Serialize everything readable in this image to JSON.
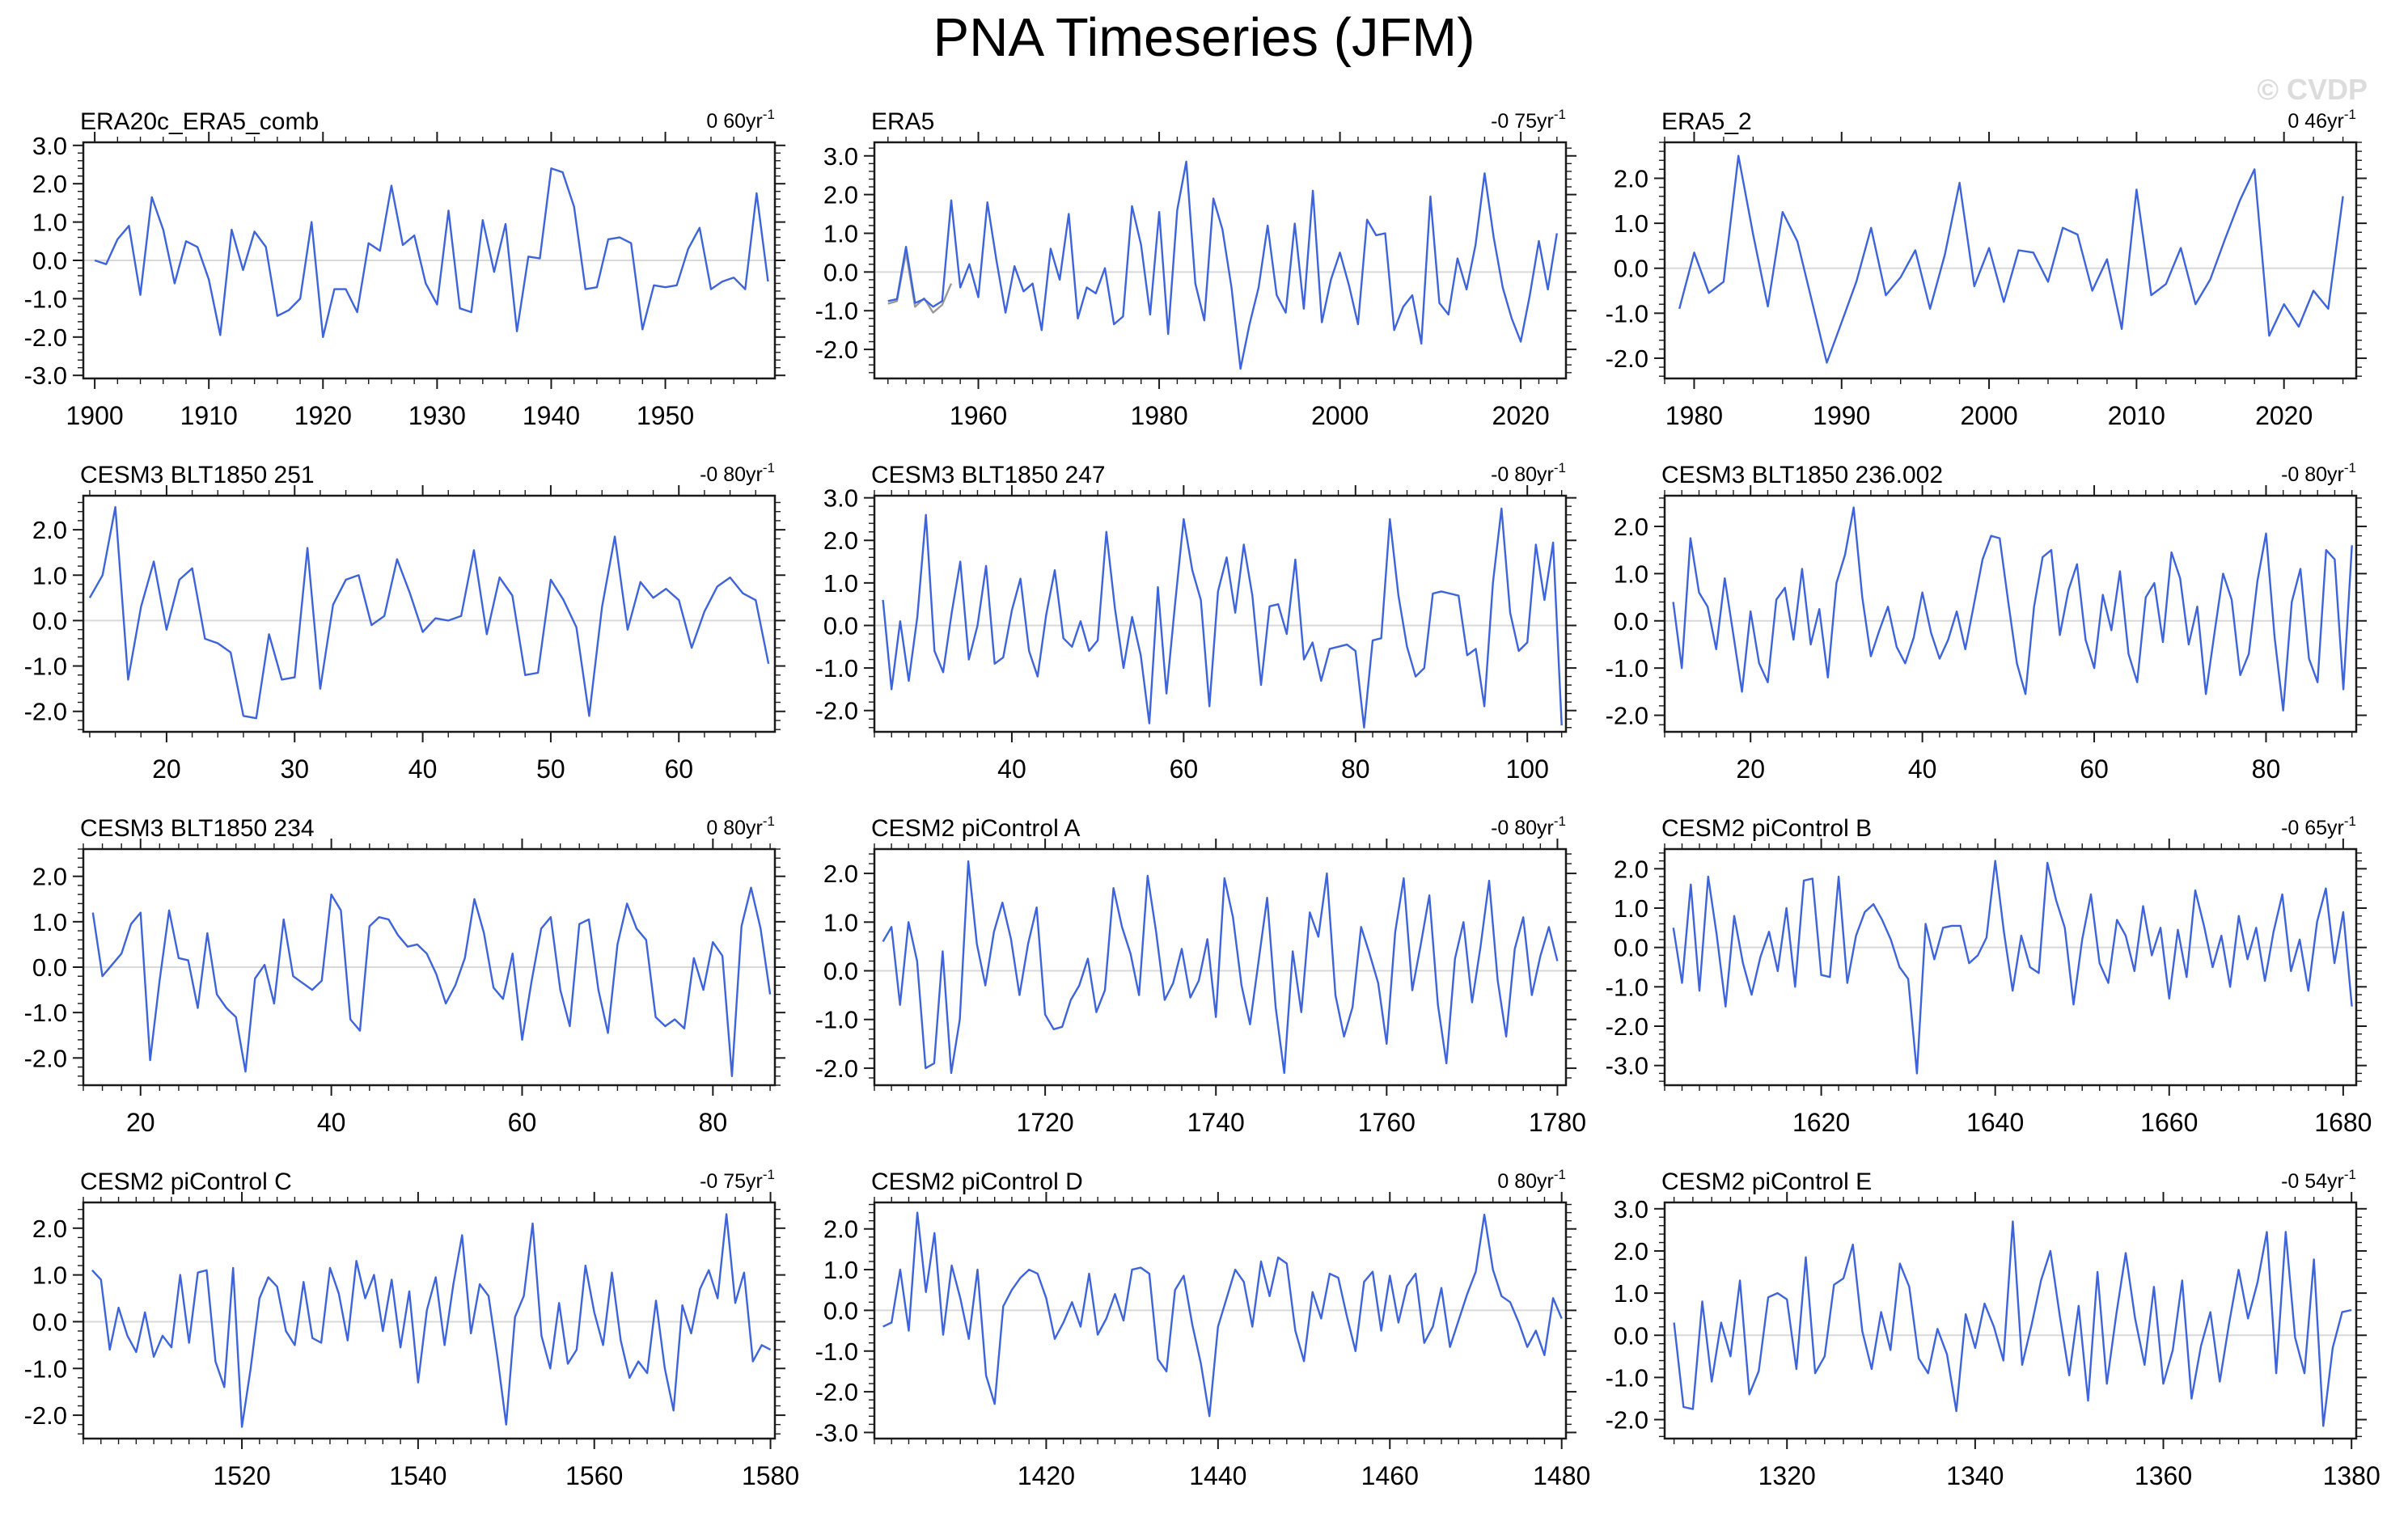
{
  "page": {
    "title": "PNA Timeseries (JFM)",
    "watermark": "© CVDP"
  },
  "style": {
    "line_color": "#3D64DC",
    "secondary_line_color": "#999999",
    "zero_line_color": "#D9D9D9",
    "frame_color": "#1a1a1a",
    "tick_color": "#1a1a1a",
    "label_color": "#000000"
  },
  "chart_data": [
    {
      "type": "line",
      "title": "ERA20c_ERA5_comb",
      "trend_label": "0 60yr",
      "trend_sup": "-1",
      "x_start": 1900,
      "x_step": 1,
      "xlim": [
        1899,
        1959.6
      ],
      "x_major_ticks": [
        1900,
        1910,
        1920,
        1930,
        1940,
        1950
      ],
      "x_minor_step": 2,
      "ylim": [
        -3.08,
        3.08
      ],
      "y_major_ticks": [
        3,
        2,
        1,
        0,
        -1,
        -2,
        -3
      ],
      "y_minor_step": 0.2,
      "values": [
        0.0,
        -0.1,
        0.55,
        0.9,
        -0.9,
        1.65,
        0.8,
        -0.6,
        0.5,
        0.35,
        -0.5,
        -1.95,
        0.8,
        -0.25,
        0.75,
        0.35,
        -1.45,
        -1.3,
        -1.0,
        1.0,
        -2.0,
        -0.75,
        -0.75,
        -1.35,
        0.45,
        0.25,
        1.95,
        0.4,
        0.65,
        -0.6,
        -1.15,
        1.3,
        -1.25,
        -1.35,
        1.05,
        -0.3,
        0.95,
        -1.85,
        0.1,
        0.05,
        2.4,
        2.3,
        1.4,
        -0.75,
        -0.7,
        0.55,
        0.6,
        0.45,
        -1.8,
        -0.65,
        -0.7,
        -0.65,
        0.3,
        0.85,
        -0.75,
        -0.55,
        -0.45,
        -0.75,
        1.75,
        -0.55
      ]
    },
    {
      "type": "line",
      "title": "ERA5",
      "trend_label": "-0 75yr",
      "trend_sup": "-1",
      "x_start": 1950,
      "x_step": 1,
      "xlim": [
        1948.5,
        2025
      ],
      "x_major_ticks": [
        1960,
        1980,
        2000,
        2020
      ],
      "x_minor_step": 2,
      "ylim": [
        -2.75,
        3.35
      ],
      "y_major_ticks": [
        3,
        2,
        1,
        0,
        -1,
        -2
      ],
      "y_minor_step": 0.2,
      "values": [
        -0.75,
        -0.7,
        0.65,
        -0.8,
        -0.7,
        -0.9,
        -0.75,
        1.85,
        -0.4,
        0.2,
        -0.65,
        1.8,
        0.3,
        -1.05,
        0.15,
        -0.5,
        -0.3,
        -1.5,
        0.6,
        -0.2,
        1.5,
        -1.2,
        -0.4,
        -0.55,
        0.1,
        -1.35,
        -1.15,
        1.7,
        0.7,
        -1.1,
        1.55,
        -1.6,
        1.6,
        2.85,
        -0.3,
        -1.25,
        1.9,
        1.1,
        -0.4,
        -2.5,
        -1.35,
        -0.4,
        1.2,
        -0.6,
        -1.05,
        1.25,
        -0.95,
        2.1,
        -1.3,
        -0.2,
        0.5,
        -0.35,
        -1.35,
        1.35,
        0.95,
        1.0,
        -1.5,
        -0.9,
        -0.6,
        -1.85,
        1.95,
        -0.8,
        -1.1,
        0.35,
        -0.45,
        0.7,
        2.55,
        0.9,
        -0.4,
        -1.2,
        -1.8,
        -0.6,
        0.8,
        -0.45,
        1.0
      ],
      "secondary": {
        "x_start": 1950,
        "values": [
          -0.82,
          -0.75,
          0.5,
          -0.9,
          -0.68,
          -1.05,
          -0.85,
          -0.3
        ]
      }
    },
    {
      "type": "line",
      "title": "ERA5_2",
      "trend_label": "0 46yr",
      "trend_sup": "-1",
      "x_start": 1979,
      "x_step": 1,
      "xlim": [
        1978,
        2024.9
      ],
      "x_major_ticks": [
        1980,
        1990,
        2000,
        2010,
        2020
      ],
      "x_minor_step": 2,
      "ylim": [
        -2.45,
        2.8
      ],
      "y_major_ticks": [
        2,
        1,
        0,
        -1,
        -2
      ],
      "y_minor_step": 0.2,
      "values": [
        -0.9,
        0.35,
        -0.55,
        -0.3,
        2.5,
        0.75,
        -0.85,
        1.25,
        0.6,
        -0.75,
        -2.1,
        -1.2,
        -0.3,
        0.9,
        -0.6,
        -0.2,
        0.4,
        -0.9,
        0.3,
        1.9,
        -0.4,
        0.45,
        -0.75,
        0.4,
        0.35,
        -0.3,
        0.9,
        0.75,
        -0.5,
        0.2,
        -1.35,
        1.75,
        -0.6,
        -0.35,
        0.45,
        -0.8,
        -0.25,
        0.65,
        1.5,
        2.2,
        -1.5,
        -0.8,
        -1.3,
        -0.5,
        -0.9,
        1.6
      ]
    },
    {
      "type": "line",
      "title": "CESM3 BLT1850 251",
      "trend_label": "-0 80yr",
      "trend_sup": "-1",
      "x_start": 14,
      "x_step": 1,
      "xlim": [
        13.5,
        67.5
      ],
      "x_major_ticks": [
        20,
        30,
        40,
        50,
        60
      ],
      "x_minor_step": 2,
      "ylim": [
        -2.45,
        2.75
      ],
      "y_major_ticks": [
        2,
        1,
        0,
        -1,
        -2
      ],
      "y_minor_step": 0.2,
      "values": [
        0.5,
        1.0,
        2.5,
        -1.3,
        0.3,
        1.3,
        -0.2,
        0.9,
        1.15,
        -0.4,
        -0.5,
        -0.7,
        -2.1,
        -2.15,
        -0.3,
        -1.3,
        -1.25,
        1.6,
        -1.5,
        0.35,
        0.9,
        1.0,
        -0.1,
        0.1,
        1.35,
        0.6,
        -0.25,
        0.05,
        0.0,
        0.1,
        1.55,
        -0.3,
        0.95,
        0.55,
        -1.2,
        -1.15,
        0.9,
        0.45,
        -0.15,
        -2.1,
        0.3,
        1.85,
        -0.2,
        0.85,
        0.5,
        0.7,
        0.45,
        -0.6,
        0.2,
        0.75,
        0.95,
        0.6,
        0.45,
        -0.95
      ]
    },
    {
      "type": "line",
      "title": "CESM3 BLT1850 247",
      "trend_label": "-0 80yr",
      "trend_sup": "-1",
      "x_start": 25,
      "x_step": 1,
      "xlim": [
        24,
        104.5
      ],
      "x_major_ticks": [
        40,
        60,
        80,
        100
      ],
      "x_minor_step": 2,
      "ylim": [
        -2.5,
        3.05
      ],
      "y_major_ticks": [
        3,
        2,
        1,
        0,
        -1,
        -2
      ],
      "y_minor_step": 0.2,
      "values": [
        0.6,
        -1.5,
        0.1,
        -1.3,
        0.2,
        2.6,
        -0.6,
        -1.1,
        0.3,
        1.5,
        -0.8,
        0.0,
        1.4,
        -0.9,
        -0.75,
        0.35,
        1.1,
        -0.6,
        -1.2,
        0.25,
        1.3,
        -0.3,
        -0.5,
        0.1,
        -0.6,
        -0.35,
        2.2,
        0.4,
        -1.0,
        0.2,
        -0.7,
        -2.3,
        0.9,
        -1.6,
        0.5,
        2.5,
        1.3,
        0.6,
        -1.9,
        0.8,
        1.6,
        0.3,
        1.9,
        0.7,
        -1.4,
        0.45,
        0.5,
        -0.2,
        1.55,
        -0.8,
        -0.4,
        -1.3,
        -0.55,
        -0.5,
        -0.45,
        -0.6,
        -2.4,
        -0.35,
        -0.3,
        2.5,
        0.7,
        -0.5,
        -1.2,
        -1.0,
        0.75,
        0.8,
        0.75,
        0.7,
        -0.7,
        -0.55,
        -1.9,
        1.0,
        2.75,
        0.3,
        -0.6,
        -0.4,
        1.9,
        0.6,
        1.95,
        -2.35
      ]
    },
    {
      "type": "line",
      "title": "CESM3 BLT1850 236.002",
      "trend_label": "-0 80yr",
      "trend_sup": "-1",
      "x_start": 11,
      "x_step": 1,
      "xlim": [
        10,
        90.5
      ],
      "x_major_ticks": [
        20,
        40,
        60,
        80
      ],
      "x_minor_step": 2,
      "ylim": [
        -2.35,
        2.65
      ],
      "y_major_ticks": [
        2,
        1,
        0,
        -1,
        -2
      ],
      "y_minor_step": 0.2,
      "values": [
        0.4,
        -1.0,
        1.75,
        0.6,
        0.3,
        -0.6,
        0.9,
        -0.3,
        -1.5,
        0.2,
        -0.9,
        -1.3,
        0.45,
        0.7,
        -0.4,
        1.1,
        -0.5,
        0.25,
        -1.2,
        0.8,
        1.4,
        2.4,
        0.5,
        -0.75,
        -0.2,
        0.3,
        -0.55,
        -0.9,
        -0.35,
        0.6,
        -0.25,
        -0.8,
        -0.4,
        0.2,
        -0.6,
        0.35,
        1.3,
        1.8,
        1.75,
        0.4,
        -0.9,
        -1.55,
        0.3,
        1.35,
        1.5,
        -0.3,
        0.65,
        1.2,
        -0.4,
        -1.0,
        0.55,
        -0.2,
        1.05,
        -0.7,
        -1.3,
        0.5,
        0.8,
        -0.45,
        1.45,
        0.9,
        -0.5,
        0.3,
        -1.55,
        -0.25,
        1.0,
        0.45,
        -1.15,
        -0.7,
        0.85,
        1.85,
        -0.35,
        -1.9,
        0.4,
        1.1,
        -0.8,
        -1.3,
        1.5,
        1.3,
        -1.45,
        1.6
      ]
    },
    {
      "type": "line",
      "title": "CESM3 BLT1850 234",
      "trend_label": "0 80yr",
      "trend_sup": "-1",
      "x_start": 15,
      "x_step": 1,
      "xlim": [
        14,
        86.5
      ],
      "x_major_ticks": [
        20,
        40,
        60,
        80
      ],
      "x_minor_step": 2,
      "ylim": [
        -2.6,
        2.6
      ],
      "y_major_ticks": [
        2,
        1,
        0,
        -1,
        -2
      ],
      "y_minor_step": 0.2,
      "values": [
        1.2,
        -0.2,
        0.05,
        0.3,
        0.95,
        1.2,
        -2.05,
        -0.3,
        1.25,
        0.2,
        0.15,
        -0.9,
        0.75,
        -0.6,
        -0.9,
        -1.1,
        -2.3,
        -0.25,
        0.05,
        -0.8,
        1.05,
        -0.2,
        -0.35,
        -0.5,
        -0.3,
        1.6,
        1.25,
        -1.15,
        -1.4,
        0.9,
        1.1,
        1.05,
        0.7,
        0.45,
        0.5,
        0.3,
        -0.15,
        -0.8,
        -0.4,
        0.2,
        1.5,
        0.75,
        -0.45,
        -0.7,
        0.3,
        -1.6,
        -0.3,
        0.85,
        1.1,
        -0.5,
        -1.3,
        0.95,
        1.05,
        -0.5,
        -1.45,
        0.5,
        1.4,
        0.85,
        0.6,
        -1.1,
        -1.3,
        -1.15,
        -1.35,
        0.2,
        -0.5,
        0.55,
        0.25,
        -2.4,
        0.9,
        1.75,
        0.85,
        -0.6
      ]
    },
    {
      "type": "line",
      "title": "CESM2 piControl A",
      "trend_label": "-0 80yr",
      "trend_sup": "-1",
      "x_start": 1701,
      "x_step": 1,
      "xlim": [
        1700,
        1781
      ],
      "x_major_ticks": [
        1720,
        1740,
        1760,
        1780
      ],
      "x_minor_step": 2,
      "ylim": [
        -2.35,
        2.5
      ],
      "y_major_ticks": [
        2,
        1,
        0,
        -1,
        -2
      ],
      "y_minor_step": 0.2,
      "values": [
        0.6,
        0.9,
        -0.7,
        1.0,
        0.2,
        -2.0,
        -1.9,
        0.4,
        -2.1,
        -1.0,
        2.25,
        0.55,
        -0.3,
        0.8,
        1.4,
        0.65,
        -0.5,
        0.55,
        1.3,
        -0.9,
        -1.2,
        -1.15,
        -0.6,
        -0.3,
        0.25,
        -0.85,
        -0.4,
        1.7,
        0.9,
        0.35,
        -0.5,
        1.95,
        0.8,
        -0.6,
        -0.25,
        0.45,
        -0.55,
        -0.2,
        0.65,
        -0.95,
        1.9,
        1.1,
        -0.3,
        -1.1,
        0.2,
        1.5,
        -0.75,
        -2.1,
        0.4,
        -0.85,
        1.2,
        0.7,
        2.0,
        -0.5,
        -1.35,
        -0.75,
        0.9,
        0.35,
        -0.25,
        -1.5,
        0.8,
        1.9,
        -0.4,
        0.55,
        1.55,
        -0.7,
        -1.9,
        0.25,
        1.0,
        -0.65,
        0.5,
        1.85,
        -0.2,
        -1.35,
        0.45,
        1.1,
        -0.5,
        0.3,
        0.9,
        0.2
      ]
    },
    {
      "type": "line",
      "title": "CESM2 piControl B",
      "trend_label": "-0 65yr",
      "trend_sup": "-1",
      "x_start": 1603,
      "x_step": 1,
      "xlim": [
        1602,
        1681.5
      ],
      "x_major_ticks": [
        1620,
        1640,
        1660,
        1680
      ],
      "x_minor_step": 2,
      "ylim": [
        -3.5,
        2.5
      ],
      "y_major_ticks": [
        2,
        1,
        0,
        -1,
        -2,
        -3
      ],
      "y_minor_step": 0.2,
      "values": [
        0.5,
        -0.9,
        1.6,
        -1.1,
        1.8,
        0.3,
        -1.5,
        0.8,
        -0.4,
        -1.2,
        -0.25,
        0.4,
        -0.6,
        1.0,
        -1.0,
        1.7,
        1.75,
        -0.7,
        -0.75,
        1.8,
        -0.9,
        0.3,
        0.9,
        1.1,
        0.7,
        0.2,
        -0.5,
        -0.8,
        -3.2,
        0.6,
        -0.3,
        0.5,
        0.55,
        0.55,
        -0.4,
        -0.2,
        0.25,
        2.2,
        0.4,
        -1.1,
        0.3,
        -0.5,
        -0.65,
        2.15,
        1.2,
        0.5,
        -1.45,
        0.2,
        1.35,
        -0.4,
        -0.9,
        0.7,
        0.3,
        -0.6,
        1.05,
        -0.2,
        0.5,
        -1.3,
        0.45,
        -0.75,
        1.45,
        0.55,
        -0.5,
        0.3,
        -1.0,
        0.8,
        -0.3,
        0.5,
        -0.85,
        0.4,
        1.35,
        -0.6,
        0.2,
        -1.1,
        0.65,
        1.5,
        -0.4,
        0.9,
        -1.5
      ]
    },
    {
      "type": "line",
      "title": "CESM2 piControl C",
      "trend_label": "-0 75yr",
      "trend_sup": "-1",
      "x_start": 1503,
      "x_step": 1,
      "xlim": [
        1502,
        1580.5
      ],
      "x_major_ticks": [
        1520,
        1540,
        1560,
        1580
      ],
      "x_minor_step": 2,
      "ylim": [
        -2.5,
        2.55
      ],
      "y_major_ticks": [
        2,
        1,
        0,
        -1,
        -2
      ],
      "y_minor_step": 0.2,
      "values": [
        1.1,
        0.9,
        -0.6,
        0.3,
        -0.3,
        -0.65,
        0.2,
        -0.75,
        -0.3,
        -0.55,
        1.0,
        -0.45,
        1.05,
        1.1,
        -0.85,
        -1.4,
        1.15,
        -2.25,
        -1.0,
        0.5,
        0.95,
        0.75,
        -0.2,
        -0.5,
        0.85,
        -0.35,
        -0.45,
        1.15,
        0.6,
        -0.4,
        1.3,
        0.5,
        1.0,
        -0.2,
        0.9,
        -0.55,
        0.65,
        -1.3,
        0.25,
        0.95,
        -0.5,
        0.8,
        1.85,
        -0.25,
        0.8,
        0.55,
        -0.75,
        -2.2,
        0.1,
        0.55,
        2.1,
        -0.3,
        -1.0,
        0.4,
        -0.9,
        -0.6,
        1.2,
        0.2,
        -0.5,
        1.05,
        -0.4,
        -1.2,
        -0.85,
        -1.1,
        0.45,
        -1.0,
        -1.9,
        0.35,
        -0.25,
        0.7,
        1.1,
        0.5,
        2.3,
        0.4,
        1.05,
        -0.85,
        -0.5,
        -0.6
      ]
    },
    {
      "type": "line",
      "title": "CESM2 piControl D",
      "trend_label": "0 80yr",
      "trend_sup": "-1",
      "x_start": 1401,
      "x_step": 1,
      "xlim": [
        1400,
        1480.5
      ],
      "x_major_ticks": [
        1420,
        1440,
        1460,
        1480
      ],
      "x_minor_step": 2,
      "ylim": [
        -3.15,
        2.65
      ],
      "y_major_ticks": [
        2,
        1,
        0,
        -1,
        -2,
        -3
      ],
      "y_minor_step": 0.2,
      "values": [
        -0.4,
        -0.3,
        1.0,
        -0.5,
        2.4,
        0.45,
        1.9,
        -0.6,
        1.1,
        0.3,
        -0.7,
        1.0,
        -1.6,
        -2.3,
        0.1,
        0.5,
        0.8,
        1.0,
        0.9,
        0.3,
        -0.7,
        -0.3,
        0.2,
        -0.4,
        0.9,
        -0.6,
        -0.2,
        0.4,
        -0.25,
        1.0,
        1.05,
        0.9,
        -1.2,
        -1.5,
        0.5,
        0.85,
        -0.35,
        -1.3,
        -2.6,
        -0.4,
        0.3,
        1.0,
        0.7,
        -0.4,
        1.2,
        0.35,
        1.3,
        1.15,
        -0.5,
        -1.25,
        0.45,
        -0.2,
        0.9,
        0.8,
        -0.15,
        -1.0,
        0.7,
        0.95,
        -0.5,
        0.85,
        -0.3,
        0.6,
        0.9,
        -0.8,
        -0.4,
        0.55,
        -0.9,
        -0.25,
        0.4,
        0.95,
        2.35,
        1.0,
        0.35,
        0.2,
        -0.3,
        -0.9,
        -0.5,
        -1.1,
        0.3,
        -0.2
      ]
    },
    {
      "type": "line",
      "title": "CESM2 piControl E",
      "trend_label": "-0 54yr",
      "trend_sup": "-1",
      "x_start": 1308,
      "x_step": 1,
      "xlim": [
        1307,
        1380.5
      ],
      "x_major_ticks": [
        1320,
        1340,
        1360,
        1380
      ],
      "x_minor_step": 2,
      "ylim": [
        -2.45,
        3.15
      ],
      "y_major_ticks": [
        3,
        2,
        1,
        0,
        -1,
        -2
      ],
      "y_minor_step": 0.2,
      "values": [
        0.3,
        -1.7,
        -1.75,
        0.8,
        -1.1,
        0.3,
        -0.5,
        1.3,
        -1.4,
        -0.85,
        0.9,
        1.0,
        0.85,
        -0.8,
        1.85,
        -0.9,
        -0.5,
        1.2,
        1.35,
        2.15,
        0.1,
        -0.8,
        0.55,
        -0.35,
        1.7,
        1.15,
        -0.55,
        -0.9,
        0.15,
        -0.45,
        -1.8,
        0.5,
        -0.3,
        0.75,
        0.2,
        -0.6,
        2.7,
        -0.7,
        0.25,
        1.3,
        2.0,
        0.45,
        -0.95,
        0.7,
        -1.55,
        1.5,
        -1.15,
        0.5,
        1.95,
        0.4,
        -0.7,
        1.15,
        -1.15,
        -0.35,
        1.3,
        -1.5,
        -0.25,
        0.55,
        -1.1,
        0.3,
        1.55,
        0.4,
        1.25,
        2.45,
        -0.9,
        2.45,
        -0.05,
        -0.9,
        1.8,
        -2.15,
        -0.3,
        0.55,
        0.6
      ]
    }
  ]
}
